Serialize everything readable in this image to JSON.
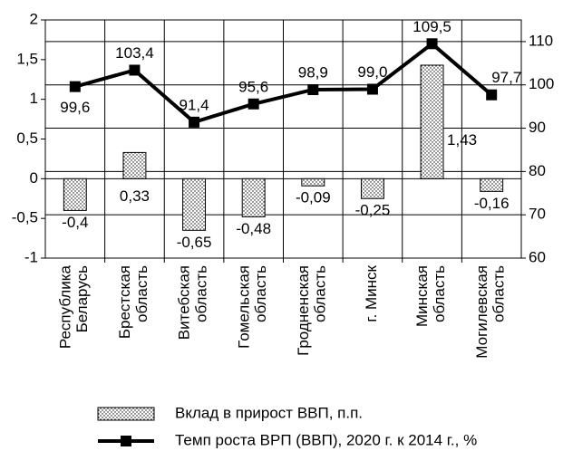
{
  "chart_data": {
    "type": "bar_line",
    "categories": [
      "Республика\nБеларусь",
      "Брестская\nобласть",
      "Витебская\nобласть",
      "Гомельская\nобласть",
      "Гродненская\nобласть",
      "г. Минск",
      "Минская\nобласть",
      "Могилевская\nобласть"
    ],
    "series": [
      {
        "name": "Вклад в прирост ВВП, п.п.",
        "type": "bar",
        "color": "#000000",
        "values": [
          -0.4,
          0.33,
          -0.65,
          -0.48,
          -0.09,
          -0.25,
          1.43,
          -0.16
        ],
        "value_labels": [
          "-0,4",
          "0,33",
          "-0,65",
          "-0,48",
          "-0,09",
          "-0,25",
          "1,43",
          "-0,16"
        ]
      },
      {
        "name": "Темп роста ВРП (ВВП), 2020 г. к 2014 г., %",
        "type": "line",
        "axis": "y2",
        "color": "#000000",
        "values": [
          99.6,
          103.4,
          91.4,
          95.6,
          98.9,
          99.0,
          109.5,
          97.7
        ],
        "value_labels": [
          "99,6",
          "103,4",
          "91,4",
          "95,6",
          "98,9",
          "99,0",
          "109,5",
          "97,7"
        ]
      }
    ],
    "ylim": [
      -1,
      2
    ],
    "yticks": [
      -1,
      {
        "value": -0.5,
        "label": "-0,5"
      },
      0,
      {
        "value": 0.5,
        "label": "0,5"
      },
      1,
      {
        "value": 1.5,
        "label": "1,5"
      },
      2
    ],
    "y2lim": [
      60,
      115
    ],
    "y2ticks": [
      60,
      70,
      80,
      90,
      100,
      110
    ],
    "grid": true
  }
}
